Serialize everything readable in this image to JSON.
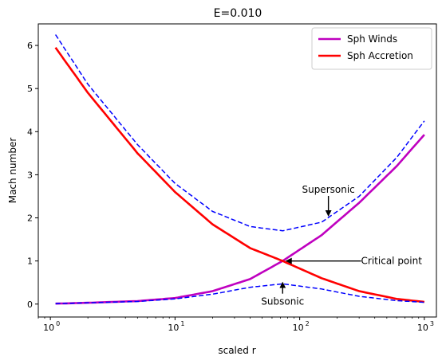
{
  "chart_data": {
    "type": "line",
    "title": "E=0.010",
    "xlabel": "scaled r",
    "ylabel": "Mach number",
    "xscale": "log",
    "xlim": [
      0.8,
      1250
    ],
    "ylim": [
      -0.3,
      6.5
    ],
    "xtick_values": [
      1,
      10,
      100,
      1000
    ],
    "xtick_labels": [
      "10",
      "10",
      "10",
      "10"
    ],
    "xtick_exponents": [
      "0",
      "1",
      "2",
      "3"
    ],
    "ytick_values": [
      0,
      1,
      2,
      3,
      4,
      5,
      6
    ],
    "ytick_labels": [
      "0",
      "1",
      "2",
      "3",
      "4",
      "5",
      "6"
    ],
    "legend_position": "top-right",
    "series": [
      {
        "name": "Sph Winds",
        "color": "#bf00bf",
        "style": "solid",
        "points": [
          [
            1.1,
            0.01
          ],
          [
            2,
            0.03
          ],
          [
            5,
            0.07
          ],
          [
            10,
            0.14
          ],
          [
            20,
            0.3
          ],
          [
            40,
            0.58
          ],
          [
            73,
            1.0
          ],
          [
            150,
            1.6
          ],
          [
            300,
            2.35
          ],
          [
            600,
            3.2
          ],
          [
            1000,
            3.93
          ]
        ]
      },
      {
        "name": "Sph Accretion",
        "color": "#ff0000",
        "style": "solid",
        "points": [
          [
            1.1,
            5.95
          ],
          [
            2,
            4.9
          ],
          [
            5,
            3.5
          ],
          [
            10,
            2.6
          ],
          [
            20,
            1.85
          ],
          [
            40,
            1.3
          ],
          [
            73,
            1.0
          ],
          [
            150,
            0.6
          ],
          [
            300,
            0.3
          ],
          [
            600,
            0.12
          ],
          [
            1000,
            0.05
          ]
        ]
      },
      {
        "color": "#0000ff",
        "style": "dashed",
        "points": [
          [
            1.1,
            6.25
          ],
          [
            2,
            5.1
          ],
          [
            5,
            3.7
          ],
          [
            10,
            2.8
          ],
          [
            20,
            2.15
          ],
          [
            40,
            1.8
          ],
          [
            73,
            1.7
          ],
          [
            150,
            1.9
          ],
          [
            300,
            2.5
          ],
          [
            600,
            3.4
          ],
          [
            1000,
            4.25
          ]
        ]
      },
      {
        "color": "#0000ff",
        "style": "dashed",
        "points": [
          [
            1.1,
            0.01
          ],
          [
            2,
            0.03
          ],
          [
            5,
            0.06
          ],
          [
            10,
            0.12
          ],
          [
            20,
            0.23
          ],
          [
            40,
            0.39
          ],
          [
            73,
            0.47
          ],
          [
            150,
            0.35
          ],
          [
            300,
            0.18
          ],
          [
            600,
            0.08
          ],
          [
            1000,
            0.04
          ]
        ]
      }
    ],
    "annotations": [
      {
        "text": "Supersonic",
        "x": 170,
        "y": 2.62,
        "ax": 170,
        "ay": 2.05
      },
      {
        "text": "Critical point",
        "x": 320,
        "y": 1.0,
        "ax": 78,
        "ay": 1.0
      },
      {
        "text": "Subsonic",
        "x": 73,
        "y": 0.02,
        "ax": 73,
        "ay": 0.5
      }
    ]
  }
}
